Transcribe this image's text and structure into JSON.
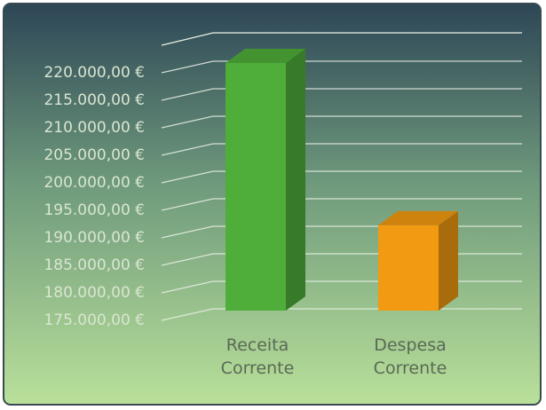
{
  "chart_data": {
    "type": "bar3d",
    "categories": [
      "Receita Corrente",
      "Despesa Corrente"
    ],
    "values": [
      220000,
      190500
    ],
    "colors": [
      "#4fae3a",
      "#f29a12"
    ],
    "ylim": [
      175000,
      225000
    ],
    "yticks": [
      {
        "value": 175000,
        "label": "175.000,00 €"
      },
      {
        "value": 180000,
        "label": "180.000,00 €"
      },
      {
        "value": 185000,
        "label": "185.000,00 €"
      },
      {
        "value": 190000,
        "label": "190.000,00 €"
      },
      {
        "value": 195000,
        "label": "195.000,00 €"
      },
      {
        "value": 200000,
        "label": "200.000,00 €"
      },
      {
        "value": 205000,
        "label": "205.000,00 €"
      },
      {
        "value": 210000,
        "label": "210.000,00 €"
      },
      {
        "value": 215000,
        "label": "215.000,00 €"
      },
      {
        "value": 220000,
        "label": "220.000,00 €"
      }
    ],
    "grid": true
  }
}
